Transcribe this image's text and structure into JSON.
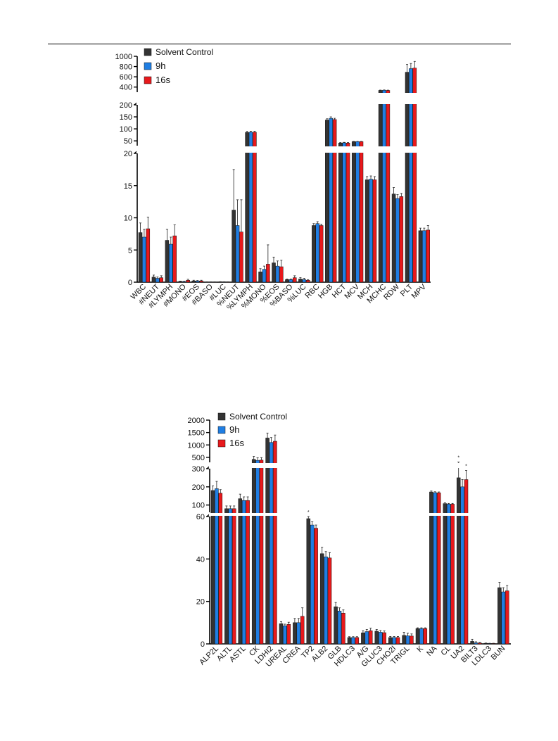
{
  "colors": {
    "Solvent Control": "#333333",
    "9h": "#1f7ee3",
    "16s": "#e8191c"
  },
  "chart_data": [
    {
      "type": "bar",
      "title": "",
      "xlabel": "",
      "ylabel": "",
      "axis_break": true,
      "y_segments": [
        {
          "range": [
            0,
            20
          ],
          "ticks": [
            0,
            5,
            10,
            15,
            20
          ]
        },
        {
          "range": [
            30,
            200
          ],
          "ticks": [
            50,
            100,
            150,
            200
          ]
        },
        {
          "range": [
            300,
            1000
          ],
          "ticks": [
            400,
            600,
            800,
            1000
          ]
        }
      ],
      "legend_placement": "top-left",
      "categories": [
        "WBC",
        "#NEUT",
        "#LYMPH",
        "#MONO",
        "#EOS",
        "#BASO",
        "#LUC",
        "%NEUT",
        "%LYMPH",
        "%MONO",
        "%EOS",
        "%BASO",
        "%LUC",
        "RBC",
        "HGB",
        "HCT",
        "MCV",
        "MCH",
        "MCHC",
        "RDW",
        "PLT",
        "MPV"
      ],
      "series": [
        {
          "name": "Solvent Control",
          "values": [
            7.7,
            0.8,
            6.5,
            0.12,
            0.2,
            0.03,
            0.05,
            11.2,
            85,
            1.6,
            3.0,
            0.4,
            0.5,
            8.8,
            137,
            41,
            47,
            15.9,
            335,
            13.7,
            690,
            8.0
          ],
          "errors": [
            1.5,
            0.3,
            1.7,
            0.05,
            0.1,
            0.02,
            0.03,
            6.3,
            5,
            0.5,
            0.9,
            0.1,
            0.2,
            0.3,
            5,
            2,
            1,
            0.5,
            6,
            1.0,
            150,
            0.4
          ]
        },
        {
          "name": "9h",
          "values": [
            7.0,
            0.6,
            5.9,
            0.1,
            0.18,
            0.03,
            0.05,
            8.8,
            86,
            2.0,
            2.5,
            0.4,
            0.4,
            9.1,
            144,
            42,
            47,
            16.0,
            338,
            13.0,
            760,
            8.0
          ],
          "errors": [
            1.2,
            0.2,
            1.1,
            0.05,
            0.08,
            0.02,
            0.02,
            4.0,
            4,
            0.5,
            0.8,
            0.1,
            0.2,
            0.3,
            6,
            2,
            1,
            0.5,
            6,
            0.6,
            100,
            0.4
          ]
        },
        {
          "name": "16s",
          "values": [
            8.3,
            0.7,
            7.2,
            0.3,
            0.2,
            0.03,
            0.04,
            7.8,
            86,
            2.8,
            2.4,
            0.7,
            0.3,
            8.8,
            139,
            41,
            47,
            15.9,
            334,
            13.3,
            770,
            8.1
          ],
          "errors": [
            1.8,
            0.3,
            1.7,
            0.15,
            0.1,
            0.02,
            0.02,
            5.0,
            4,
            3.0,
            1.0,
            0.3,
            0.1,
            0.2,
            5,
            2,
            1,
            0.5,
            6,
            0.5,
            130,
            0.7
          ]
        }
      ]
    },
    {
      "type": "bar",
      "title": "",
      "xlabel": "",
      "ylabel": "",
      "axis_break": true,
      "y_segments": [
        {
          "range": [
            0,
            60
          ],
          "ticks": [
            0,
            20,
            40,
            60
          ]
        },
        {
          "range": [
            60,
            300
          ],
          "ticks": [
            100,
            200,
            300
          ]
        },
        {
          "range": [
            300,
            2000
          ],
          "ticks": [
            500,
            1000,
            1500,
            2000
          ]
        }
      ],
      "legend_placement": "top-left",
      "annotations": [
        "*",
        "*",
        "*"
      ],
      "categories": [
        "ALP2L",
        "ALTL",
        "ASTL",
        "CK",
        "LDHI2",
        "UREAL",
        "CREA",
        "TP2",
        "ALB2",
        "GLB",
        "HDLC3",
        "A/G",
        "GLUC3",
        "CHO2I",
        "TRIGL",
        "K",
        "NA",
        "CL",
        "UA2",
        "BILT3",
        "LDLC3",
        "BUN"
      ],
      "series": [
        {
          "name": "Solvent Control",
          "values": [
            180,
            80,
            135,
            420,
            1280,
            9.5,
            10,
            59,
            42.5,
            17.5,
            3.0,
            5.2,
            6.0,
            3.0,
            4.0,
            7.2,
            172,
            108,
            250,
            1.2,
            0.3,
            26.5
          ],
          "errors": [
            25,
            15,
            25,
            120,
            200,
            1.0,
            2.0,
            1.0,
            3.0,
            2.0,
            0.4,
            1.0,
            0.8,
            0.5,
            1.5,
            0.4,
            5,
            4,
            60,
            1.0,
            0.1,
            2.5
          ]
        },
        {
          "name": "9h",
          "values": [
            190,
            80,
            125,
            380,
            1100,
            8.5,
            10,
            56,
            41,
            15.5,
            3.0,
            5.8,
            5.5,
            3.0,
            3.8,
            7.2,
            168,
            105,
            200,
            0.5,
            0.2,
            24.5
          ],
          "errors": [
            40,
            15,
            20,
            100,
            200,
            0.8,
            2.0,
            1.5,
            2.5,
            1.5,
            0.4,
            1.0,
            0.8,
            0.5,
            1.2,
            0.4,
            5,
            4,
            40,
            0.5,
            0.1,
            2.0
          ]
        },
        {
          "name": "16s",
          "values": [
            165,
            80,
            125,
            390,
            1150,
            9.2,
            13,
            54.5,
            40.5,
            14.5,
            3.0,
            6.2,
            5.3,
            3.0,
            3.7,
            7.2,
            167,
            105,
            240,
            0.4,
            0.2,
            25
          ],
          "errors": [
            20,
            15,
            20,
            100,
            250,
            1.0,
            4.0,
            1.5,
            2.5,
            1.5,
            0.4,
            1.2,
            0.8,
            0.5,
            1.0,
            0.4,
            5,
            4,
            50,
            0.3,
            0.1,
            2.5
          ]
        }
      ]
    }
  ]
}
